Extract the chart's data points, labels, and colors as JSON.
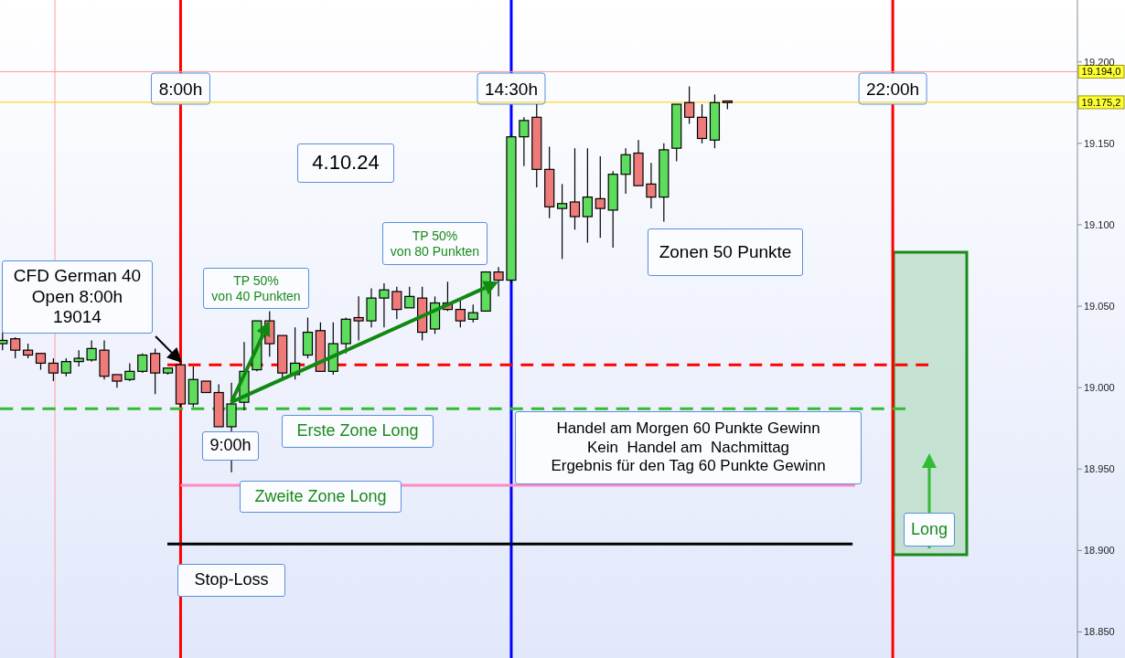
{
  "chart_data": {
    "type": "candlestick",
    "x": [
      4.5,
      4.75,
      5,
      5.25,
      5.5,
      5.75,
      6,
      6.25,
      6.5,
      6.75,
      7,
      7.25,
      7.5,
      7.75,
      8,
      8.25,
      8.5,
      8.75,
      9,
      9.25,
      9.5,
      9.75,
      10,
      10.25,
      10.5,
      10.75,
      11,
      11.25,
      11.5,
      11.75,
      12,
      12.25,
      12.5,
      12.75,
      13,
      13.25,
      13.5,
      13.75,
      14,
      14.25,
      14.5,
      14.75,
      15,
      15.25,
      15.5,
      15.75,
      16,
      16.25,
      16.5,
      16.75,
      17,
      17.25,
      17.5,
      17.75,
      18,
      18.25,
      18.5,
      18.75
    ],
    "ohlc": [
      [
        19027,
        19034,
        19023,
        19029
      ],
      [
        19030,
        19031,
        19018,
        19023
      ],
      [
        19023,
        19027,
        19018,
        19020
      ],
      [
        19021,
        19021,
        19011,
        19015
      ],
      [
        19015,
        19018,
        19004,
        19009
      ],
      [
        19009,
        19018,
        19007,
        19016
      ],
      [
        19016,
        19023,
        19013,
        19018
      ],
      [
        19017,
        19029,
        19016,
        19024
      ],
      [
        19023,
        19029,
        19005,
        19007
      ],
      [
        19008,
        19008,
        19000,
        19004
      ],
      [
        19005,
        19015,
        19004,
        19010
      ],
      [
        19010,
        19021,
        19009,
        19020
      ],
      [
        19021,
        19024,
        18996,
        19009
      ],
      [
        19009,
        19012,
        19008,
        19012
      ],
      [
        19014,
        19015,
        18988,
        18990
      ],
      [
        18990,
        19013,
        18988,
        19005
      ],
      [
        19004,
        19004,
        18997,
        18997
      ],
      [
        18997,
        19002,
        18976,
        18976
      ],
      [
        18976,
        19003,
        18948,
        18990
      ],
      [
        18991,
        19028,
        18986,
        19010
      ],
      [
        19011,
        19041,
        19010,
        19041
      ],
      [
        19041,
        19047,
        19019,
        19027
      ],
      [
        19032,
        19032,
        19006,
        19009
      ],
      [
        19008,
        19037,
        19005,
        19015
      ],
      [
        19020,
        19043,
        19018,
        19034
      ],
      [
        19035,
        19040,
        19010,
        19010
      ],
      [
        19010,
        19040,
        19008,
        19027
      ],
      [
        19027,
        19043,
        19021,
        19042
      ],
      [
        19043,
        19056,
        19029,
        19041
      ],
      [
        19041,
        19061,
        19037,
        19055
      ],
      [
        19055,
        19064,
        19037,
        19060
      ],
      [
        19059,
        19062,
        19042,
        19048
      ],
      [
        19049,
        19062,
        19049,
        19056
      ],
      [
        19055,
        19062,
        19029,
        19034
      ],
      [
        19036,
        19056,
        19033,
        19052
      ],
      [
        19052,
        19065,
        19047,
        19048
      ],
      [
        19048,
        19054,
        19037,
        19041
      ],
      [
        19042,
        19051,
        19040,
        19046
      ],
      [
        19047,
        19071,
        19047,
        19071
      ],
      [
        19071,
        19074,
        19056,
        19066
      ],
      [
        19066,
        19155,
        19064,
        19154
      ],
      [
        19154,
        19166,
        19136,
        19164
      ],
      [
        19166,
        19174,
        19123,
        19134
      ],
      [
        19134,
        19148,
        19104,
        19111
      ],
      [
        19110,
        19125,
        19079,
        19113
      ],
      [
        19114,
        19147,
        19097,
        19105
      ],
      [
        19105,
        19147,
        19089,
        19117
      ],
      [
        19116,
        19142,
        19092,
        19110
      ],
      [
        19109,
        19133,
        19086,
        19131
      ],
      [
        19131,
        19147,
        19119,
        19143
      ],
      [
        19144,
        19152,
        19124,
        19124
      ],
      [
        19125,
        19138,
        19110,
        19117
      ],
      [
        19117,
        19150,
        19102,
        19146
      ],
      [
        19147,
        19174,
        19139,
        19174
      ],
      [
        19175,
        19185,
        19162,
        19166
      ],
      [
        19166,
        19174,
        19150,
        19153
      ],
      [
        19152,
        19180,
        19147,
        19175
      ],
      [
        19176,
        19176,
        19171,
        19175
      ]
    ],
    "colors": [
      "#5ddc5d",
      "#ee7a7a",
      "#ee7a7a",
      "#ee7a7a",
      "#ee7a7a",
      "#5ddc5d",
      "#5ddc5d",
      "#5ddc5d",
      "#ee7a7a",
      "#ee7a7a",
      "#5ddc5d",
      "#5ddc5d",
      "#ee7a7a",
      "#5ddc5d",
      "#ee7a7a",
      "#5ddc5d",
      "#ee7a7a",
      "#ee7a7a",
      "#5ddc5d",
      "#5ddc5d",
      "#5ddc5d",
      "#ee7a7a",
      "#ee7a7a",
      "#5ddc5d",
      "#5ddc5d",
      "#ee7a7a",
      "#5ddc5d",
      "#5ddc5d",
      "#ee7a7a",
      "#5ddc5d",
      "#5ddc5d",
      "#ee7a7a",
      "#5ddc5d",
      "#ee7a7a",
      "#5ddc5d",
      "#ee7a7a",
      "#ee7a7a",
      "#5ddc5d",
      "#5ddc5d",
      "#ee7a7a",
      "#5ddc5d",
      "#5ddc5d",
      "#ee7a7a",
      "#ee7a7a",
      "#5ddc5d",
      "#ee7a7a",
      "#5ddc5d",
      "#ee7a7a",
      "#5ddc5d",
      "#5ddc5d",
      "#ee7a7a",
      "#ee7a7a",
      "#5ddc5d",
      "#5ddc5d",
      "#ee7a7a",
      "#ee7a7a",
      "#5ddc5d",
      "#ee7a7a"
    ],
    "series": [
      {
        "type": "line",
        "x": [
          7.74,
          22.7
        ],
        "values": [
          19014,
          19014
        ],
        "color": "#ff0000",
        "line_style": "dashed"
      },
      {
        "type": "line",
        "x": [
          4.45,
          22.25
        ],
        "values": [
          18987,
          18987
        ],
        "color": "#33bb33",
        "line_style": "dashed"
      },
      {
        "type": "line",
        "x": [
          8,
          21.26
        ],
        "values": [
          18940,
          18940
        ],
        "color": "#ff88c8",
        "line_style": "solid"
      },
      {
        "type": "line",
        "x": [
          7.74,
          21.21
        ],
        "values": [
          18904,
          18904
        ],
        "color": "#000000",
        "line_style": "solid"
      }
    ],
    "ref_lines": [
      {
        "axis": "x",
        "value": 5.53,
        "color": "#ffa0a0"
      },
      {
        "axis": "x",
        "value": 8,
        "label": "8:00h",
        "color": "#ff0000"
      },
      {
        "axis": "x",
        "value": 14.5,
        "label": "14:30h",
        "color": "#0000ff"
      },
      {
        "axis": "x",
        "value": 22,
        "label": "22:00h",
        "color": "#ff0000"
      },
      {
        "axis": "y",
        "value": 19194,
        "label": "19.194,0",
        "color": "#ff9999"
      },
      {
        "axis": "y",
        "value": 19175.2,
        "label": "19.175,2",
        "color": "#ffcc00"
      }
    ],
    "annotations": [
      "CFD German 40\nOpen 8:00h\n19014",
      {
        "text": "TP 50%\nvon 40 Punkten",
        "x": 9.75,
        "y": 19041
      },
      {
        "text": "TP 50%\nvon 80 Punkten",
        "x": 14.25,
        "y": 19065
      },
      "4.10.24",
      "9:00h",
      "Erste Zone Long",
      "Zweite Zone Long",
      "Stop-Loss",
      "Zonen 50 Punkte",
      "Handel am Morgen 60 Punkte Gewinn\nKein  Handel am  Nachmittag\nErgebnis für den Tag 60 Punkte Gewinn",
      "Long"
    ],
    "xlim": [
      4.45,
      25.63
    ],
    "ylim": [
      18834,
      19238
    ],
    "yticks": [
      {
        "value": 18850,
        "label": "18.850"
      },
      {
        "value": 18900,
        "label": "18.900"
      },
      {
        "value": 18950,
        "label": "18.950"
      },
      {
        "value": 19000,
        "label": "19.000"
      },
      {
        "value": 19050,
        "label": "19.050"
      },
      {
        "value": 19100,
        "label": "19.100"
      },
      {
        "value": 19150,
        "label": "19.150"
      },
      {
        "value": 19200,
        "label": "19.200"
      }
    ],
    "tick_labels": "y"
  }
}
